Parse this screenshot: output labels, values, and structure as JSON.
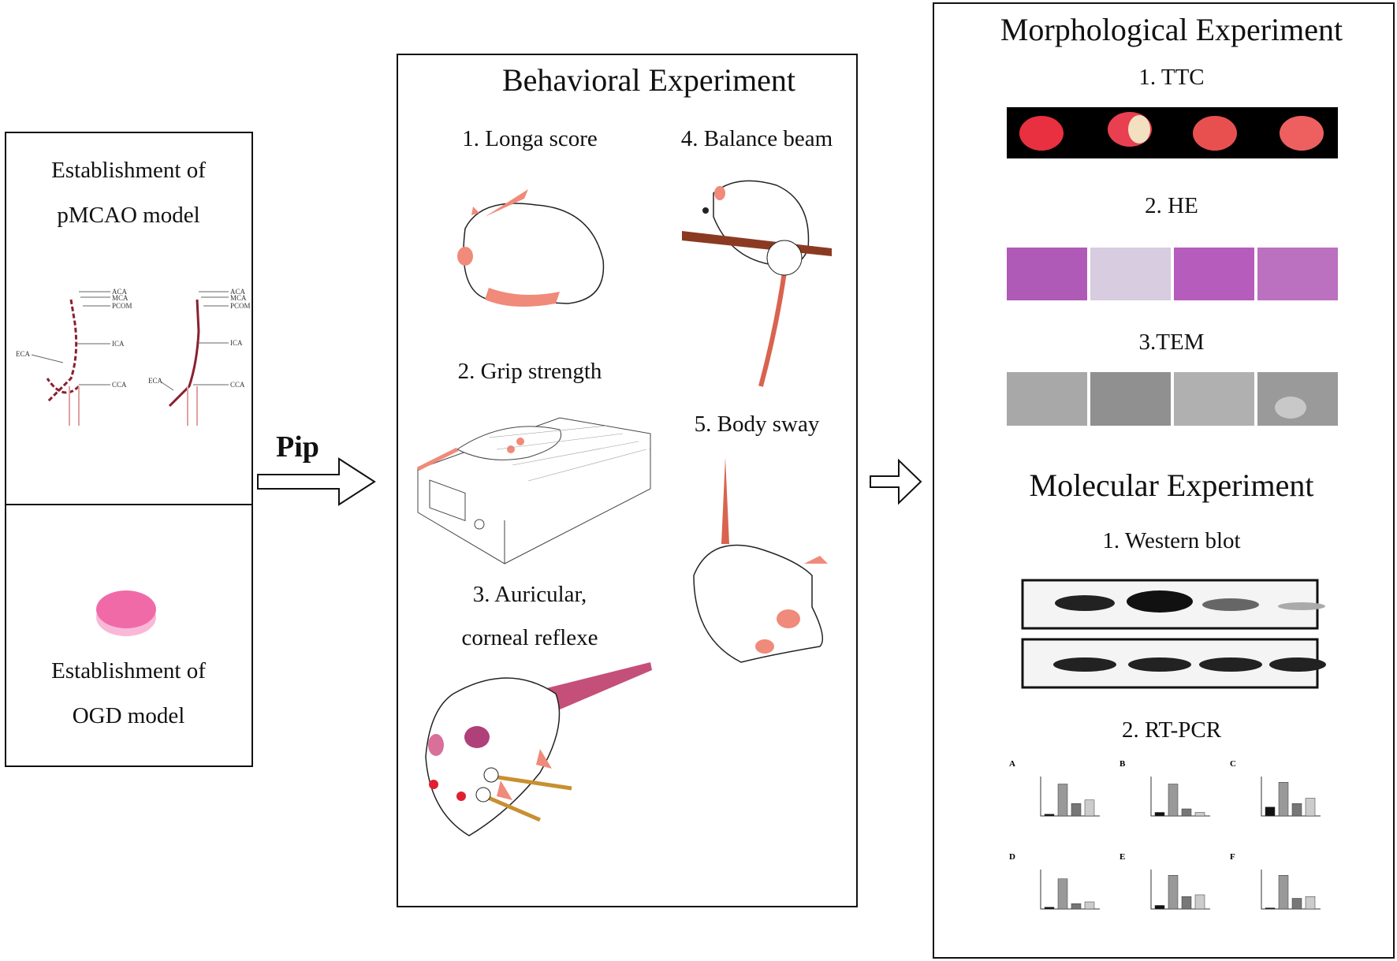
{
  "left": {
    "pmcao_line1": "Establishment of",
    "pmcao_line2": "pMCAO model",
    "ogd_line1": "Establishment of",
    "ogd_line2": "OGD model",
    "artery_labels_left": [
      "ACA",
      "MCA",
      "PCOM",
      "ICA",
      "CCA",
      "ECA"
    ],
    "artery_labels_right": [
      "ACA",
      "MCA",
      "PCOM",
      "ICA",
      "CCA",
      "ECA"
    ]
  },
  "arrow1_label": "Pip",
  "behavioral": {
    "title": "Behavioral Experiment",
    "items": [
      "1. Longa score",
      "4. Balance beam",
      "2. Grip strength",
      "5. Body sway",
      "3. Auricular,",
      "corneal reflexe"
    ]
  },
  "morphological": {
    "title": "Morphological Experiment",
    "items": [
      "1. TTC",
      "2. HE",
      "3.TEM"
    ]
  },
  "molecular": {
    "title": "Molecular Experiment",
    "items": [
      "1. Western blot",
      "2. RT-PCR"
    ],
    "panels": [
      "A",
      "B",
      "C",
      "D",
      "E",
      "F"
    ]
  },
  "colors": {
    "rat_pink": "#f08a7a",
    "tail": "#d9634f",
    "beam": "#8b3a22",
    "dish": "#f06aa8",
    "he": "#b05ab8"
  }
}
